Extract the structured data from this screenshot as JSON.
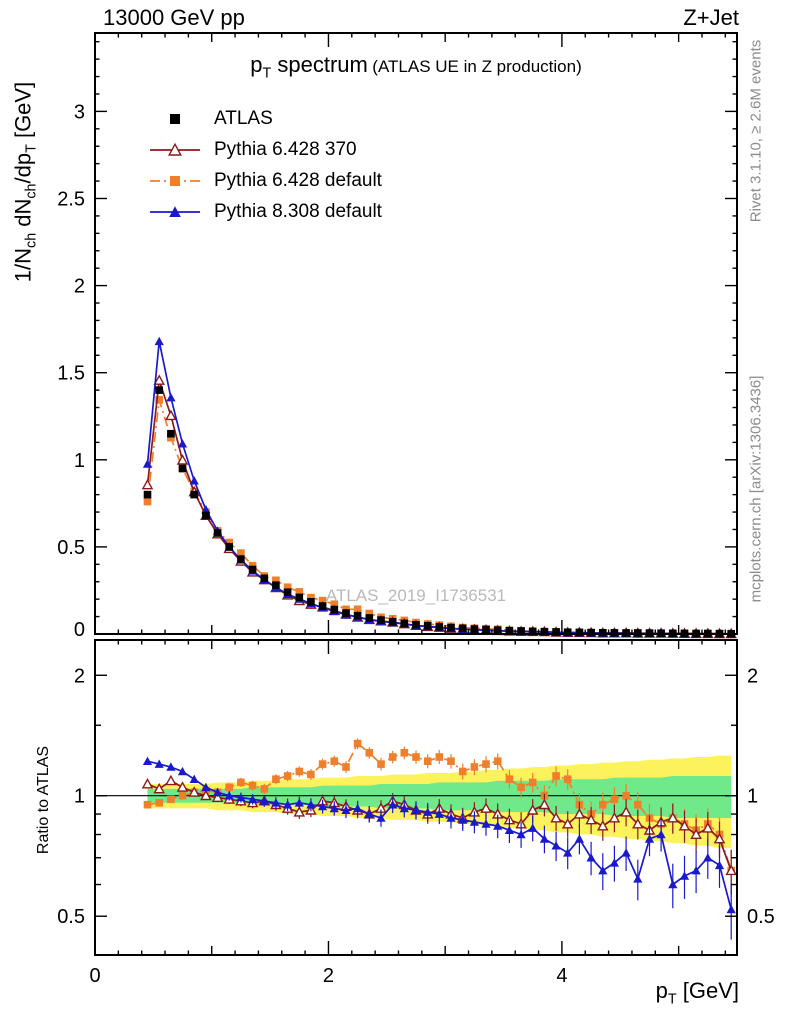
{
  "header": {
    "left": "13000 GeV pp",
    "right": "Z+Jet"
  },
  "title": {
    "prefix": "p",
    "sub": "T",
    "main": " spectrum",
    "note": "(ATLAS UE in Z production)"
  },
  "side": {
    "top": "Rivet 3.1.10, ≥ 2.6M events",
    "bottom": "mcplots.cern.ch [arXiv:1306.3436]"
  },
  "watermark": "ATLAS_2019_I1736531",
  "ratio": {
    "ylabel": "Ratio to ATLAS"
  },
  "axes": {
    "ylabel_parts": {
      "a": "1/N",
      "b": "ch",
      "c": " dN",
      "d": "ch",
      "e": "/dp",
      "f": "T",
      "g": " [GeV]"
    },
    "xlabel_parts": {
      "a": "p",
      "b": "T",
      "c": " [GeV]"
    },
    "x_tick_labels": [
      "0",
      "2",
      "4"
    ],
    "x_tick_values": [
      0,
      2,
      4
    ],
    "y_tick_labels": [
      "0",
      "0.5",
      "1",
      "1.5",
      "2",
      "2.5",
      "3"
    ],
    "y_tick_values": [
      0,
      0.5,
      1,
      1.5,
      2,
      2.5,
      3
    ],
    "ratio_tick_labels": [
      "0.5",
      "1",
      "2"
    ],
    "ratio_tick_values": [
      0.5,
      1,
      2
    ]
  },
  "chart_data": {
    "type": "line",
    "title": "p_T spectrum (ATLAS UE in Z production)",
    "xlabel": "p_T [GeV]",
    "ylabel": "1/N_ch dN_ch/dp_T [GeV]",
    "ratio_ylabel": "Ratio to ATLAS",
    "xlim": [
      0,
      5.5
    ],
    "ylim": [
      0,
      3.45
    ],
    "ratio_ylim": [
      0.4,
      2.45
    ],
    "ratio_scale": "log",
    "grid": false,
    "legend_position": "top-left",
    "x": [
      0.45,
      0.55,
      0.65,
      0.75,
      0.85,
      0.95,
      1.05,
      1.15,
      1.25,
      1.35,
      1.45,
      1.55,
      1.65,
      1.75,
      1.85,
      1.95,
      2.05,
      2.15,
      2.25,
      2.35,
      2.45,
      2.55,
      2.65,
      2.75,
      2.85,
      2.95,
      3.05,
      3.15,
      3.25,
      3.35,
      3.45,
      3.55,
      3.65,
      3.75,
      3.85,
      3.95,
      4.05,
      4.15,
      4.25,
      4.35,
      4.45,
      4.55,
      4.65,
      4.75,
      4.85,
      4.95,
      5.05,
      5.15,
      5.25,
      5.35,
      5.45
    ],
    "series": [
      {
        "name": "ATLAS",
        "marker": "square",
        "color": "#000000",
        "line": "none",
        "values": [
          0.8,
          1.4,
          1.15,
          0.95,
          0.8,
          0.68,
          0.58,
          0.5,
          0.43,
          0.37,
          0.32,
          0.28,
          0.24,
          0.21,
          0.185,
          0.16,
          0.14,
          0.12,
          0.105,
          0.092,
          0.08,
          0.07,
          0.061,
          0.053,
          0.047,
          0.041,
          0.036,
          0.032,
          0.028,
          0.025,
          0.022,
          0.019,
          0.017,
          0.015,
          0.013,
          0.0115,
          0.01,
          0.009,
          0.008,
          0.007,
          0.0065,
          0.006,
          0.0055,
          0.005,
          0.0045,
          0.004,
          0.0035,
          0.003,
          0.003,
          0.0025,
          0.002
        ]
      },
      {
        "name": "Pythia 6.428 370",
        "marker": "triangle-open",
        "color": "#8b1a1a",
        "line": "solid",
        "ratio": [
          1.07,
          1.04,
          1.09,
          1.05,
          1.02,
          1.0,
          0.99,
          0.98,
          0.97,
          0.96,
          0.97,
          0.95,
          0.93,
          0.91,
          0.92,
          0.97,
          0.96,
          0.94,
          0.92,
          0.9,
          0.93,
          0.97,
          0.95,
          0.92,
          0.9,
          0.93,
          0.9,
          0.88,
          0.91,
          0.93,
          0.9,
          0.87,
          0.85,
          0.92,
          0.95,
          0.88,
          0.85,
          0.9,
          0.87,
          0.84,
          0.88,
          0.91,
          0.85,
          0.82,
          0.86,
          0.88,
          0.84,
          0.8,
          0.83,
          0.78,
          0.65
        ]
      },
      {
        "name": "Pythia 6.428 default",
        "marker": "square",
        "color": "#ef7f2a",
        "line": "dashdot",
        "ratio": [
          0.95,
          0.96,
          0.98,
          1.0,
          1.02,
          1.03,
          1.02,
          1.05,
          1.08,
          1.06,
          1.04,
          1.1,
          1.12,
          1.15,
          1.13,
          1.2,
          1.22,
          1.18,
          1.35,
          1.28,
          1.2,
          1.25,
          1.28,
          1.25,
          1.22,
          1.25,
          1.22,
          1.15,
          1.18,
          1.2,
          1.22,
          1.1,
          1.05,
          1.08,
          1.0,
          1.12,
          1.1,
          0.95,
          0.9,
          0.95,
          0.98,
          1.0,
          0.95,
          0.88,
          0.85,
          0.88,
          0.85,
          0.82,
          0.85,
          0.8,
          0.65
        ]
      },
      {
        "name": "Pythia 8.308 default",
        "marker": "triangle",
        "color": "#1a1acc",
        "line": "solid",
        "ratio": [
          1.22,
          1.2,
          1.18,
          1.15,
          1.1,
          1.05,
          1.02,
          1.0,
          0.99,
          0.98,
          0.97,
          0.96,
          0.95,
          0.96,
          0.95,
          0.94,
          0.93,
          0.92,
          0.93,
          0.9,
          0.88,
          0.95,
          0.93,
          0.92,
          0.91,
          0.9,
          0.88,
          0.87,
          0.86,
          0.85,
          0.84,
          0.82,
          0.8,
          0.83,
          0.78,
          0.75,
          0.72,
          0.78,
          0.7,
          0.65,
          0.68,
          0.72,
          0.62,
          0.78,
          0.8,
          0.6,
          0.63,
          0.65,
          0.7,
          0.67,
          0.52
        ]
      }
    ],
    "bands": {
      "green": {
        "color": "#6fe98a",
        "halfwidth": [
          0.04,
          0.04,
          0.04,
          0.04,
          0.04,
          0.04,
          0.04,
          0.04,
          0.04,
          0.05,
          0.05,
          0.05,
          0.05,
          0.05,
          0.05,
          0.06,
          0.06,
          0.06,
          0.06,
          0.06,
          0.07,
          0.07,
          0.07,
          0.07,
          0.07,
          0.08,
          0.08,
          0.08,
          0.08,
          0.08,
          0.09,
          0.09,
          0.09,
          0.09,
          0.09,
          0.1,
          0.1,
          0.1,
          0.1,
          0.1,
          0.11,
          0.11,
          0.11,
          0.11,
          0.11,
          0.12,
          0.12,
          0.12,
          0.12,
          0.12,
          0.12
        ]
      },
      "yellow": {
        "color": "#fcf35c",
        "halfwidth": [
          0.07,
          0.07,
          0.07,
          0.07,
          0.07,
          0.07,
          0.08,
          0.08,
          0.08,
          0.09,
          0.09,
          0.09,
          0.1,
          0.1,
          0.1,
          0.11,
          0.11,
          0.11,
          0.12,
          0.12,
          0.12,
          0.13,
          0.13,
          0.13,
          0.14,
          0.14,
          0.14,
          0.15,
          0.15,
          0.16,
          0.16,
          0.17,
          0.17,
          0.18,
          0.18,
          0.19,
          0.19,
          0.2,
          0.2,
          0.21,
          0.21,
          0.22,
          0.22,
          0.23,
          0.23,
          0.24,
          0.24,
          0.25,
          0.25,
          0.26,
          0.26
        ]
      }
    }
  }
}
